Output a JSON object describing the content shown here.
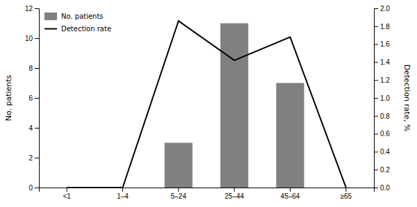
{
  "chart_data": {
    "type": "bar",
    "categories": [
      "<1",
      "1–4",
      "5–24",
      "25–44",
      "45–64",
      "≥65"
    ],
    "series": [
      {
        "name": "No. patients",
        "type": "bar",
        "color": "#808080",
        "values": [
          0,
          0,
          3,
          11,
          7,
          0
        ]
      },
      {
        "name": "Detection rate",
        "type": "line",
        "color": "#000000",
        "axis": "y2",
        "values": [
          0.0,
          0.0,
          1.86,
          1.42,
          1.68,
          0.0
        ]
      }
    ],
    "ylabel": "No. patients",
    "y2label": "Detection rate, %",
    "ylim": [
      0,
      12
    ],
    "yticks": [
      0,
      2,
      4,
      6,
      8,
      10,
      12
    ],
    "y2lim": [
      0,
      2.0
    ],
    "y2ticks": [
      {
        "value": 0,
        "label": "0.0"
      },
      0.2,
      0.4,
      0.6,
      0.8,
      {
        "value": 1,
        "label": "1.0"
      },
      1.2,
      1.4,
      1.6,
      1.8,
      {
        "value": 2,
        "label": "2.0"
      }
    ],
    "legend": "upper left"
  }
}
